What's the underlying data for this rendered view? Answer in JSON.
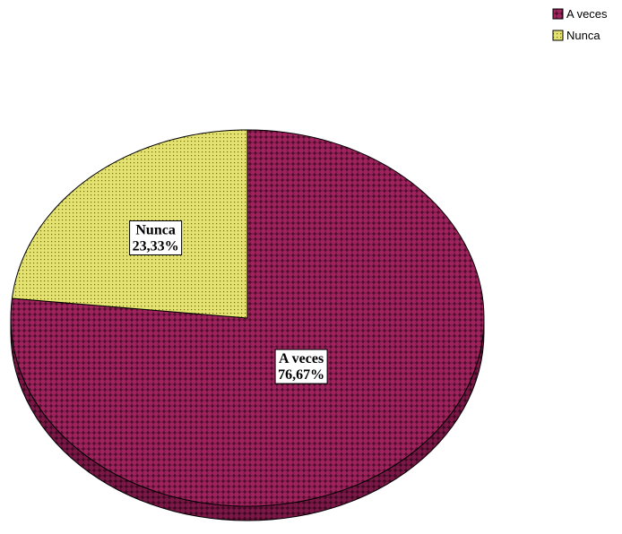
{
  "chart_data": {
    "type": "pie",
    "style": "3d-tilted",
    "categories": [
      "A veces",
      "Nunca"
    ],
    "values": [
      76.67,
      23.33
    ],
    "data_labels": [
      {
        "category": "A veces",
        "percent": "76,67%"
      },
      {
        "category": "Nunca",
        "percent": "23,33%"
      }
    ],
    "colors": [
      "#A0235E",
      "#E4E270"
    ],
    "fill_patterns": [
      "crosshatch-dots",
      "fine-dots"
    ],
    "legend": {
      "position": "top-right",
      "entries": [
        "A veces",
        "Nunca"
      ]
    },
    "start_angle_deg": 90,
    "direction": "clockwise"
  }
}
